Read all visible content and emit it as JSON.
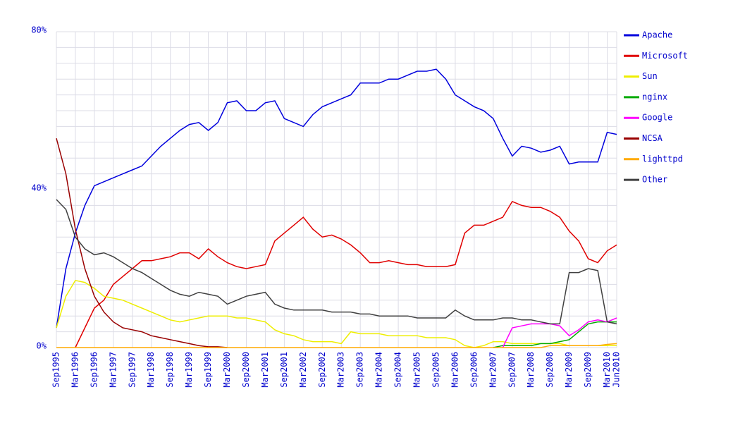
{
  "chart_data": {
    "type": "line",
    "categories": [
      "Sep1995",
      null,
      "Mar1996",
      null,
      "Sep1996",
      null,
      "Mar1997",
      null,
      "Sep1997",
      null,
      "Mar1998",
      null,
      "Sep1998",
      null,
      "Mar1999",
      null,
      "Sep1999",
      null,
      "Mar2000",
      null,
      "Sep2000",
      null,
      "Mar2001",
      null,
      "Sep2001",
      null,
      "Mar2002",
      null,
      "Sep2002",
      null,
      "Mar2003",
      null,
      "Sep2003",
      null,
      "Mar2004",
      null,
      "Sep2004",
      null,
      "Mar2005",
      null,
      "Sep2005",
      null,
      "Mar2006",
      null,
      "Sep2006",
      null,
      "Mar2007",
      null,
      "Sep2007",
      null,
      "Mar2008",
      null,
      "Sep2008",
      null,
      "Mar2009",
      null,
      "Sep2009",
      null,
      "Mar2010",
      "Jun2010"
    ],
    "ylim": [
      0,
      80
    ],
    "yticks": [
      {
        "value": 0,
        "label": "0%"
      },
      {
        "value": 40,
        "label": "40%"
      },
      {
        "value": 80,
        "label": "80%"
      }
    ],
    "grid": true,
    "legend": "right",
    "series": [
      {
        "name": "Apache",
        "color": "#0000dd",
        "values": [
          5,
          20,
          29,
          36,
          41,
          42,
          43,
          44,
          45,
          46,
          48.5,
          51,
          53,
          55,
          56.5,
          57,
          55,
          57,
          62,
          62.5,
          60,
          60,
          62,
          62.5,
          58,
          57,
          56,
          59,
          61,
          62,
          63,
          64,
          67,
          67,
          67,
          68,
          68,
          69,
          70,
          70,
          70.5,
          68,
          64,
          62.5,
          61,
          60,
          58,
          53,
          48.5,
          51,
          50.5,
          49.5,
          50,
          51,
          46.5,
          47,
          47,
          47,
          54.5,
          54
        ]
      },
      {
        "name": "Microsoft",
        "color": "#e00000",
        "values": [
          null,
          null,
          0,
          5,
          10,
          12,
          16,
          18,
          20,
          22,
          22,
          22.5,
          23,
          24,
          24,
          22.5,
          25,
          23,
          21.5,
          20.5,
          20,
          20.5,
          21,
          27,
          29,
          31,
          33,
          30,
          28,
          28.5,
          27.5,
          26,
          24,
          21.5,
          21.5,
          22,
          21.5,
          21,
          21,
          20.5,
          20.5,
          20.5,
          21,
          29,
          31,
          31,
          32,
          33,
          37,
          36,
          35.5,
          35.5,
          34.5,
          33,
          29.5,
          27,
          22.5,
          21.5,
          24.5,
          26
        ]
      },
      {
        "name": "Sun",
        "color": "#eeee00",
        "values": [
          5,
          13,
          17,
          16.5,
          15,
          13,
          12.5,
          12,
          11,
          10,
          9,
          8,
          7,
          6.5,
          7,
          7.5,
          8,
          8,
          8,
          7.5,
          7.5,
          7,
          6.5,
          4.5,
          3.5,
          3,
          2,
          1.5,
          1.5,
          1.5,
          1,
          4,
          3.5,
          3.5,
          3.5,
          3,
          3,
          3,
          3,
          2.5,
          2.5,
          2.5,
          2,
          0.5,
          0,
          0.5,
          1.5,
          1.5,
          1,
          1,
          1,
          1,
          1,
          1,
          0.5,
          0.5,
          0.5,
          0.5,
          0.5,
          0.5
        ]
      },
      {
        "name": "nginx",
        "color": "#00aa00",
        "values": [
          null,
          null,
          null,
          null,
          null,
          null,
          null,
          null,
          null,
          null,
          null,
          null,
          null,
          null,
          null,
          null,
          null,
          null,
          null,
          null,
          null,
          null,
          null,
          null,
          null,
          null,
          null,
          null,
          null,
          null,
          null,
          null,
          null,
          null,
          null,
          null,
          null,
          null,
          null,
          null,
          null,
          null,
          null,
          null,
          null,
          null,
          0,
          0.5,
          0.5,
          0.5,
          0.5,
          1,
          1,
          1.5,
          2,
          4,
          6,
          6.5,
          6.5,
          6.5
        ]
      },
      {
        "name": "Google",
        "color": "#ff00ff",
        "values": [
          null,
          null,
          null,
          null,
          null,
          null,
          null,
          null,
          null,
          null,
          null,
          null,
          null,
          null,
          null,
          null,
          null,
          null,
          null,
          null,
          null,
          null,
          null,
          null,
          null,
          null,
          null,
          null,
          null,
          null,
          null,
          null,
          null,
          null,
          null,
          null,
          null,
          null,
          null,
          null,
          null,
          null,
          null,
          null,
          null,
          null,
          null,
          0,
          5,
          5.5,
          6,
          6,
          6,
          5.5,
          3,
          4.5,
          6.5,
          7,
          6.5,
          7.5
        ]
      },
      {
        "name": "NCSA",
        "color": "#990000",
        "values": [
          53,
          44,
          30,
          20,
          13,
          9,
          6.5,
          5,
          4.5,
          4,
          3,
          2.5,
          2,
          1.5,
          1,
          0.5,
          0.2,
          0.2,
          0,
          null,
          null,
          null,
          null,
          null,
          null,
          null,
          null,
          null,
          null,
          null,
          null,
          null,
          null,
          null,
          null,
          null,
          null,
          null,
          null,
          null,
          null,
          null,
          null,
          null,
          null,
          null,
          null,
          null,
          null,
          null,
          null,
          null,
          null,
          null,
          null,
          null,
          null,
          null,
          null,
          null
        ]
      },
      {
        "name": "lighttpd",
        "color": "#ffaa00",
        "values": [
          0,
          0,
          0,
          0,
          0,
          0,
          0,
          0,
          0,
          0,
          0,
          0,
          0,
          0,
          0,
          0,
          0,
          0,
          0,
          0,
          0,
          0,
          0,
          0,
          0,
          0,
          0,
          0,
          0,
          0,
          0,
          0,
          0,
          0,
          0,
          0,
          0,
          0,
          0,
          0,
          0,
          0,
          0,
          0,
          0,
          0,
          0,
          0,
          0,
          0,
          0,
          0,
          0.5,
          0.5,
          0.5,
          0.5,
          0.5,
          0.5,
          0.8,
          1
        ]
      },
      {
        "name": "Other",
        "color": "#404040",
        "values": [
          37.5,
          35,
          28,
          25,
          23.5,
          24,
          23,
          21.5,
          20,
          19,
          17.5,
          16,
          14.5,
          13.5,
          13,
          14,
          13.5,
          13,
          11,
          12,
          13,
          13.5,
          14,
          11,
          10,
          9.5,
          9.5,
          9.5,
          9.5,
          9,
          9,
          9,
          8.5,
          8.5,
          8,
          8,
          8,
          8,
          7.5,
          7.5,
          7.5,
          7.5,
          9.5,
          8,
          7,
          7,
          7,
          7.5,
          7.5,
          7,
          7,
          6.5,
          6,
          6,
          19,
          19,
          20,
          19.5,
          6.5,
          6
        ]
      }
    ]
  }
}
